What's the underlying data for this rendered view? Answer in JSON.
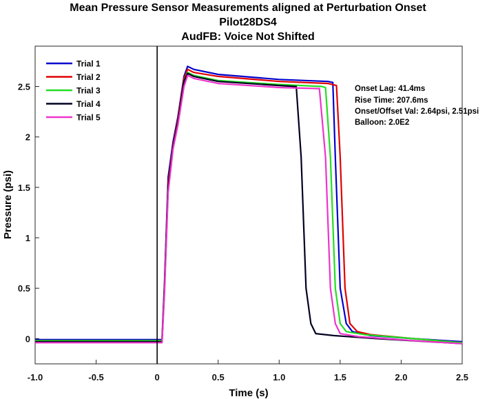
{
  "chart_data": {
    "type": "line",
    "title": [
      "Mean Pressure Sensor Measurements aligned at Perturbation Onset",
      "Pilot28DS4",
      "AudFB: Voice Not Shifted"
    ],
    "xlabel": "Time (s)",
    "ylabel": "Pressure (psi)",
    "xlim": [
      -1.0,
      2.5
    ],
    "ylim": [
      -0.25,
      2.9
    ],
    "xticks": [
      -1.0,
      -0.5,
      0,
      0.5,
      1.0,
      1.5,
      2.0,
      2.5
    ],
    "xtick_labels": [
      "-1.0",
      "-0.5",
      "0",
      "0.5",
      "1.0",
      "1.5",
      "2.0",
      "2.5"
    ],
    "yticks": [
      0,
      0.5,
      1,
      1.5,
      2,
      2.5
    ],
    "ytick_labels": [
      "0",
      "0.5",
      "1",
      "1.5",
      "2",
      "2.5"
    ],
    "grid": false,
    "legend_position": "top-left",
    "onset_line_x": 0,
    "series": [
      {
        "name": "Trial 1",
        "color": "#0000cc",
        "x": [
          -1.0,
          0.04,
          0.06,
          0.09,
          0.13,
          0.17,
          0.22,
          0.25,
          0.3,
          0.5,
          1.0,
          1.4,
          1.44,
          1.46,
          1.5,
          1.55,
          1.6,
          1.75,
          2.1,
          2.5
        ],
        "y": [
          -0.01,
          -0.01,
          0.55,
          1.6,
          1.95,
          2.2,
          2.6,
          2.7,
          2.67,
          2.62,
          2.57,
          2.55,
          2.54,
          1.8,
          0.5,
          0.15,
          0.07,
          0.03,
          0.0,
          -0.03
        ]
      },
      {
        "name": "Trial 2",
        "color": "#e00000",
        "x": [
          -1.0,
          0.04,
          0.06,
          0.09,
          0.13,
          0.17,
          0.22,
          0.25,
          0.3,
          0.5,
          1.0,
          1.4,
          1.47,
          1.5,
          1.54,
          1.58,
          1.64,
          1.75,
          2.1,
          2.5
        ],
        "y": [
          -0.02,
          -0.02,
          0.5,
          1.55,
          1.92,
          2.18,
          2.58,
          2.67,
          2.64,
          2.6,
          2.55,
          2.53,
          2.51,
          1.8,
          0.5,
          0.15,
          0.07,
          0.04,
          0.0,
          -0.04
        ]
      },
      {
        "name": "Trial 3",
        "color": "#22dd22",
        "x": [
          -1.0,
          0.04,
          0.06,
          0.09,
          0.13,
          0.17,
          0.22,
          0.25,
          0.3,
          0.5,
          1.0,
          1.35,
          1.38,
          1.42,
          1.46,
          1.5,
          1.55,
          1.7,
          2.1,
          2.5
        ],
        "y": [
          -0.02,
          -0.02,
          0.5,
          1.5,
          1.9,
          2.15,
          2.55,
          2.64,
          2.61,
          2.56,
          2.52,
          2.5,
          2.49,
          1.8,
          0.5,
          0.15,
          0.07,
          0.04,
          0.0,
          -0.04
        ]
      },
      {
        "name": "Trial 4",
        "color": "#000022",
        "x": [
          -1.0,
          0.04,
          0.06,
          0.09,
          0.13,
          0.17,
          0.22,
          0.25,
          0.3,
          0.5,
          1.0,
          1.13,
          1.14,
          1.18,
          1.22,
          1.26,
          1.3,
          1.45,
          1.8,
          2.5
        ],
        "y": [
          -0.03,
          -0.03,
          0.5,
          1.5,
          1.9,
          2.15,
          2.55,
          2.63,
          2.6,
          2.55,
          2.51,
          2.5,
          2.5,
          1.8,
          0.5,
          0.15,
          0.05,
          0.03,
          0.0,
          -0.05
        ]
      },
      {
        "name": "Trial 5",
        "color": "#ee33cc",
        "x": [
          -1.0,
          0.04,
          0.06,
          0.09,
          0.13,
          0.17,
          0.22,
          0.25,
          0.3,
          0.5,
          1.0,
          1.31,
          1.33,
          1.38,
          1.42,
          1.46,
          1.5,
          1.65,
          2.1,
          2.5
        ],
        "y": [
          -0.04,
          -0.04,
          0.45,
          1.45,
          1.88,
          2.12,
          2.5,
          2.61,
          2.58,
          2.53,
          2.49,
          2.48,
          2.48,
          1.8,
          0.5,
          0.15,
          0.05,
          0.02,
          -0.02,
          -0.05
        ]
      }
    ],
    "annotations": [
      "Onset Lag: 41.4ms",
      "Rise Time: 207.6ms",
      "Onset/Offset Val: 2.64psi, 2.51psi",
      "Balloon: 2.0E2"
    ]
  }
}
